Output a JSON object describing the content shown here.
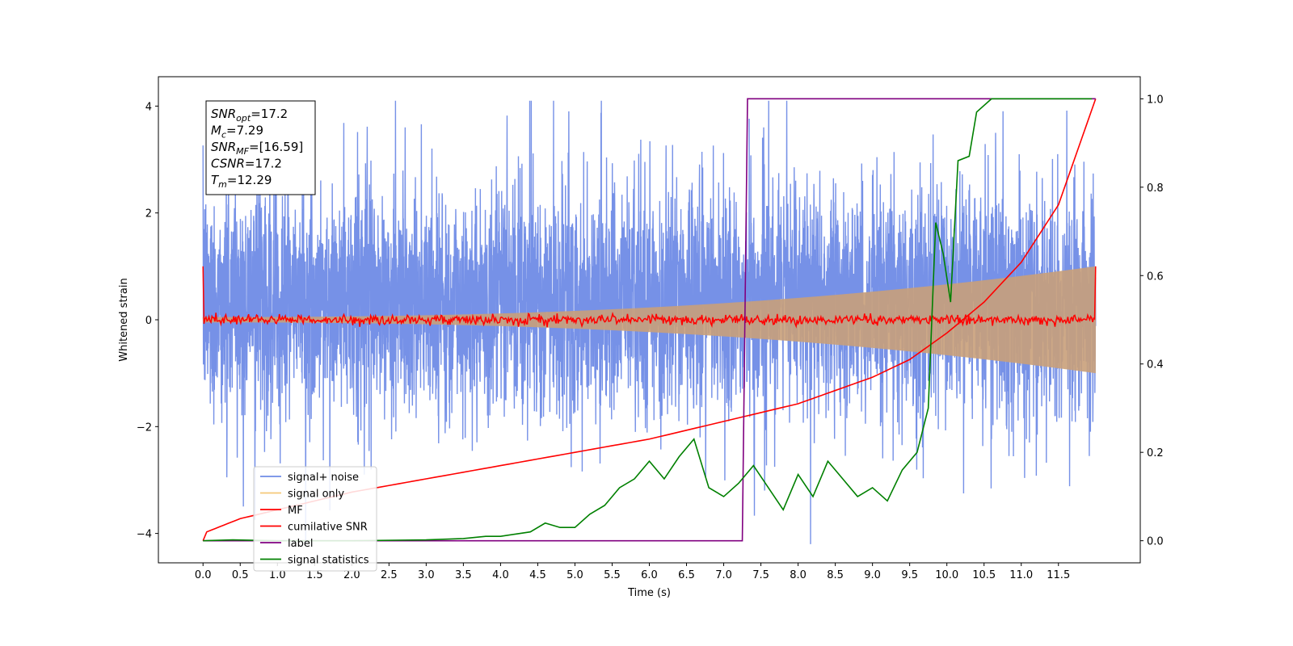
{
  "chart_data": {
    "type": "line",
    "title": "",
    "xlabel": "Time (s)",
    "ylabel": "Whitened strain",
    "y2label": "",
    "xlim": [
      -0.6,
      12.6
    ],
    "ylim": [
      -4.55,
      4.55
    ],
    "y2lim": [
      -0.05,
      1.05
    ],
    "x_ticks": [
      0.0,
      0.5,
      1.0,
      1.5,
      2.0,
      2.5,
      3.0,
      3.5,
      4.0,
      4.5,
      5.0,
      5.5,
      6.0,
      6.5,
      7.0,
      7.5,
      8.0,
      8.5,
      9.0,
      9.5,
      10.0,
      10.5,
      11.0,
      11.5
    ],
    "x_tick_labels": [
      "0.0",
      "0.5",
      "1.0",
      "1.5",
      "2.0",
      "2.5",
      "3.0",
      "3.5",
      "4.0",
      "4.5",
      "5.0",
      "5.5",
      "6.0",
      "6.5",
      "7.0",
      "7.5",
      "8.0",
      "8.5",
      "9.0",
      "9.5",
      "10.0",
      "10.5",
      "11.0",
      "11.5"
    ],
    "y_ticks": [
      -4,
      -2,
      0,
      2,
      4
    ],
    "y_tick_labels": [
      "−4",
      "−2",
      "0",
      "2",
      "4"
    ],
    "y2_ticks": [
      0.0,
      0.2,
      0.4,
      0.6,
      0.8,
      1.0
    ],
    "y2_tick_labels": [
      "0.0",
      "0.2",
      "0.4",
      "0.6",
      "0.8",
      "1.0"
    ],
    "grid": false,
    "legend_position": "lower-left",
    "series": [
      {
        "name": "signal+ noise",
        "color": "#6f8be6",
        "axis": "left",
        "description": "dense noise trace, approx. uniform band between -2.0 and 2.7 with spikes to about ±3.8, over t = 0 to 12"
      },
      {
        "name": "signal only",
        "color": "#f5c878",
        "axis": "left",
        "description": "chirp oscillation with envelope growing from about 0.05 at t=0 to about 1.0 at t=12"
      },
      {
        "name": "MF",
        "color": "#ff0000",
        "axis": "left",
        "description": "matched filter output near 0 with noise ±0.1, starting at 1.0 at t=0 and ending at 1.0 at t=12"
      },
      {
        "name": "cumilative SNR",
        "color": "#ff0000",
        "axis": "right",
        "x": [
          0.0,
          0.05,
          0.5,
          1.0,
          2.0,
          3.0,
          4.0,
          5.0,
          6.0,
          7.0,
          7.5,
          8.0,
          8.5,
          9.0,
          9.5,
          10.0,
          10.5,
          11.0,
          11.5,
          12.0
        ],
        "values": [
          0.0,
          0.02,
          0.05,
          0.07,
          0.11,
          0.14,
          0.17,
          0.2,
          0.23,
          0.27,
          0.29,
          0.31,
          0.34,
          0.37,
          0.41,
          0.47,
          0.54,
          0.63,
          0.76,
          1.0
        ]
      },
      {
        "name": "label",
        "color": "#800080",
        "axis": "right",
        "x": [
          0.0,
          7.25,
          7.32,
          12.0
        ],
        "values": [
          0.0,
          0.0,
          1.0,
          1.0
        ]
      },
      {
        "name": "signal statistics",
        "color": "#008000",
        "axis": "right",
        "x": [
          0.0,
          0.4,
          1.0,
          2.0,
          3.0,
          3.5,
          3.8,
          4.0,
          4.2,
          4.4,
          4.6,
          4.8,
          5.0,
          5.2,
          5.4,
          5.6,
          5.8,
          6.0,
          6.2,
          6.4,
          6.6,
          6.8,
          7.0,
          7.2,
          7.4,
          7.6,
          7.8,
          8.0,
          8.2,
          8.4,
          8.6,
          8.8,
          9.0,
          9.2,
          9.4,
          9.6,
          9.75,
          9.85,
          9.95,
          10.05,
          10.15,
          10.3,
          10.4,
          10.6,
          10.8,
          11.0,
          11.3,
          11.6,
          11.95
        ],
        "values": [
          0.0,
          0.002,
          0.0,
          0.0,
          0.002,
          0.005,
          0.01,
          0.01,
          0.015,
          0.02,
          0.04,
          0.03,
          0.03,
          0.06,
          0.08,
          0.12,
          0.14,
          0.18,
          0.14,
          0.19,
          0.23,
          0.12,
          0.1,
          0.13,
          0.17,
          0.12,
          0.07,
          0.15,
          0.1,
          0.18,
          0.14,
          0.1,
          0.12,
          0.09,
          0.16,
          0.2,
          0.3,
          0.72,
          0.65,
          0.54,
          0.86,
          0.87,
          0.97,
          1.0,
          1.0,
          1.0,
          1.0,
          1.0,
          1.0
        ]
      }
    ],
    "annotation": {
      "lines": [
        {
          "base": "SNR",
          "sub": "opt",
          "rest": "=17.2"
        },
        {
          "base": "M",
          "sub": "c",
          "rest": "=7.29"
        },
        {
          "base": "SNR",
          "sub": "MF",
          "rest": "=[16.59]"
        },
        {
          "base": "CSNR",
          "sub": "",
          "rest": "=17.2"
        },
        {
          "base": "T",
          "sub": "m",
          "rest": "=12.29"
        }
      ]
    }
  }
}
